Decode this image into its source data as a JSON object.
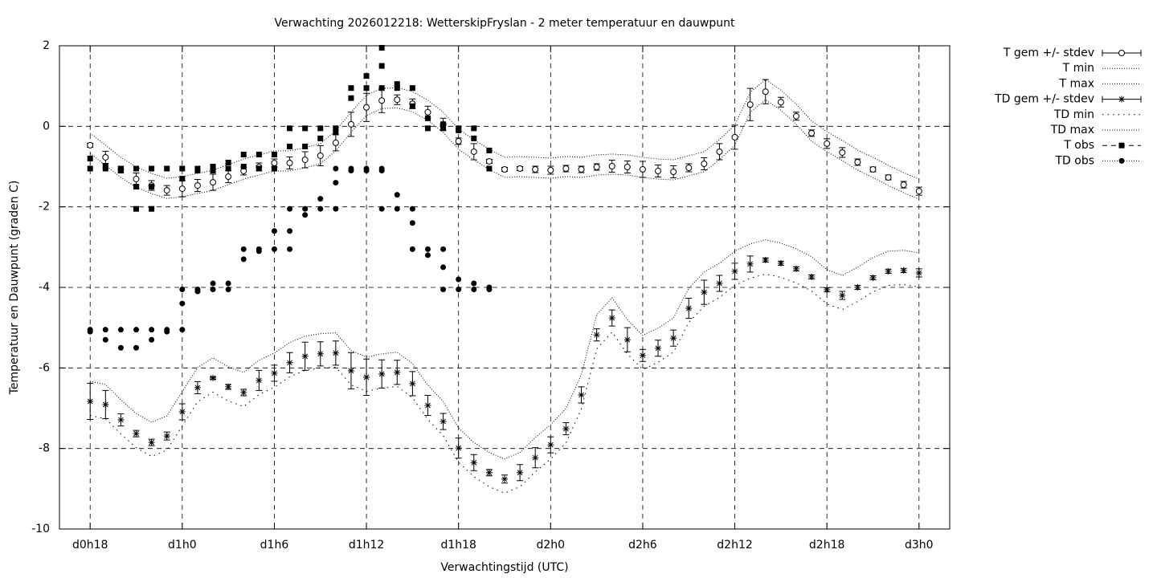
{
  "chart_data": {
    "type": "errorbar",
    "title": "Verwachting 2026012218: WetterskipFryslan - 2 meter temperatuur en dauwpunt",
    "xlabel": "Verwachtingstijd (UTC)",
    "ylabel": "Temperatuur en Dauwpunt (graden C)",
    "xlim": [
      16,
      74
    ],
    "ylim": [
      -10,
      2
    ],
    "xticks": [
      {
        "value": 18,
        "label": "d0h18"
      },
      {
        "value": 24,
        "label": "d1h0"
      },
      {
        "value": 30,
        "label": "d1h6"
      },
      {
        "value": 36,
        "label": "d1h12"
      },
      {
        "value": 42,
        "label": "d1h18"
      },
      {
        "value": 48,
        "label": "d2h0"
      },
      {
        "value": 54,
        "label": "d2h6"
      },
      {
        "value": 60,
        "label": "d2h12"
      },
      {
        "value": 66,
        "label": "d2h18"
      },
      {
        "value": 72,
        "label": "d3h0"
      }
    ],
    "yticks": [
      -10,
      -8,
      -6,
      -4,
      -2,
      0,
      2
    ],
    "grid": true,
    "legend": "outside-right",
    "x": [
      18,
      19,
      20,
      21,
      22,
      23,
      24,
      25,
      26,
      27,
      28,
      29,
      30,
      31,
      32,
      33,
      34,
      35,
      36,
      37,
      38,
      39,
      40,
      41,
      42,
      43,
      44,
      45,
      46,
      47,
      48,
      49,
      50,
      51,
      52,
      53,
      54,
      55,
      56,
      57,
      58,
      59,
      60,
      61,
      62,
      63,
      64,
      65,
      66,
      67,
      68,
      69,
      70,
      71,
      72
    ],
    "series": [
      {
        "name": "T gem +/- stdev",
        "color": "#000000",
        "style": "errorbars",
        "marker": "circle",
        "values": [
          -0.47,
          -0.77,
          -1.07,
          -1.31,
          -1.47,
          -1.59,
          -1.55,
          -1.47,
          -1.39,
          -1.25,
          -1.11,
          -1.01,
          -0.91,
          -0.91,
          -0.83,
          -0.73,
          -0.41,
          0.05,
          0.47,
          0.64,
          0.66,
          0.56,
          0.35,
          0.05,
          -0.37,
          -0.63,
          -0.87,
          -1.07,
          -1.05,
          -1.07,
          -1.09,
          -1.05,
          -1.07,
          -1.01,
          -0.99,
          -1.01,
          -1.07,
          -1.11,
          -1.13,
          -1.03,
          -0.93,
          -0.63,
          -0.27,
          0.54,
          0.86,
          0.6,
          0.25,
          -0.17,
          -0.43,
          -0.65,
          -0.89,
          -1.07,
          -1.27,
          -1.45,
          -1.61
        ],
        "errors": [
          0.05,
          0.15,
          0.08,
          0.15,
          0.12,
          0.12,
          0.2,
          0.15,
          0.2,
          0.15,
          0.1,
          0.1,
          0.1,
          0.15,
          0.2,
          0.25,
          0.2,
          0.3,
          0.35,
          0.3,
          0.12,
          0.12,
          0.15,
          0.15,
          0.08,
          0.2,
          0.05,
          0.05,
          0.05,
          0.08,
          0.1,
          0.08,
          0.08,
          0.08,
          0.15,
          0.15,
          0.2,
          0.15,
          0.15,
          0.1,
          0.15,
          0.2,
          0.3,
          0.4,
          0.3,
          0.12,
          0.1,
          0.08,
          0.12,
          0.12,
          0.08,
          0.06,
          0.06,
          0.08,
          0.1
        ]
      },
      {
        "name": "T min",
        "color": "#000000",
        "style": "line",
        "dash": "1 2",
        "values": [
          -0.67,
          -0.97,
          -1.27,
          -1.51,
          -1.67,
          -1.79,
          -1.75,
          -1.67,
          -1.59,
          -1.45,
          -1.31,
          -1.21,
          -1.11,
          -1.11,
          -1.03,
          -0.93,
          -0.61,
          -0.15,
          0.27,
          0.44,
          0.46,
          0.36,
          0.15,
          -0.15,
          -0.57,
          -0.83,
          -1.07,
          -1.27,
          -1.25,
          -1.27,
          -1.29,
          -1.25,
          -1.27,
          -1.21,
          -1.19,
          -1.21,
          -1.27,
          -1.31,
          -1.33,
          -1.23,
          -1.13,
          -0.83,
          -0.47,
          0.34,
          0.66,
          0.4,
          0.05,
          -0.37,
          -0.63,
          -0.85,
          -1.09,
          -1.27,
          -1.47,
          -1.65,
          -1.81
        ]
      },
      {
        "name": "T max",
        "color": "#000000",
        "style": "line",
        "dash": "1 2",
        "values": [
          -0.17,
          -0.47,
          -0.77,
          -1.01,
          -1.17,
          -1.29,
          -1.25,
          -1.17,
          -1.09,
          -0.95,
          -0.81,
          -0.71,
          -0.61,
          -0.61,
          -0.53,
          -0.43,
          -0.11,
          0.35,
          0.77,
          0.94,
          0.96,
          0.86,
          0.65,
          0.35,
          -0.07,
          -0.33,
          -0.57,
          -0.77,
          -0.75,
          -0.77,
          -0.79,
          -0.75,
          -0.77,
          -0.71,
          -0.69,
          -0.71,
          -0.77,
          -0.81,
          -0.83,
          -0.73,
          -0.63,
          -0.33,
          0.03,
          0.84,
          1.16,
          0.9,
          0.55,
          0.13,
          -0.13,
          -0.35,
          -0.59,
          -0.77,
          -0.97,
          -1.15,
          -1.31
        ]
      },
      {
        "name": "TD gem +/- stdev",
        "color": "#000000",
        "style": "errorbars",
        "marker": "star",
        "values": [
          -6.83,
          -6.91,
          -7.29,
          -7.63,
          -7.85,
          -7.69,
          -7.09,
          -6.49,
          -6.25,
          -6.47,
          -6.61,
          -6.31,
          -6.13,
          -5.87,
          -5.71,
          -5.65,
          -5.63,
          -6.07,
          -6.23,
          -6.15,
          -6.11,
          -6.39,
          -6.93,
          -7.33,
          -7.99,
          -8.35,
          -8.6,
          -8.76,
          -8.6,
          -8.23,
          -7.91,
          -7.51,
          -6.67,
          -5.18,
          -4.76,
          -5.3,
          -5.69,
          -5.51,
          -5.26,
          -4.52,
          -4.12,
          -3.9,
          -3.6,
          -3.42,
          -3.32,
          -3.4,
          -3.54,
          -3.74,
          -4.06,
          -4.2,
          -4.0,
          -3.76,
          -3.6,
          -3.58,
          -3.64
        ],
        "errors": [
          0.45,
          0.35,
          0.15,
          0.08,
          0.08,
          0.1,
          0.2,
          0.15,
          0.03,
          0.06,
          0.08,
          0.25,
          0.2,
          0.25,
          0.35,
          0.3,
          0.3,
          0.45,
          0.45,
          0.35,
          0.3,
          0.3,
          0.25,
          0.2,
          0.25,
          0.2,
          0.08,
          0.1,
          0.2,
          0.25,
          0.2,
          0.15,
          0.2,
          0.15,
          0.2,
          0.3,
          0.15,
          0.2,
          0.2,
          0.25,
          0.3,
          0.2,
          0.2,
          0.2,
          0.05,
          0.05,
          0.05,
          0.05,
          0.05,
          0.1,
          0.05,
          0.05,
          0.05,
          0.05,
          0.1
        ]
      },
      {
        "name": "TD min",
        "color": "#000000",
        "style": "line",
        "dash": "1.5 5",
        "values": [
          -7.18,
          -7.26,
          -7.64,
          -7.98,
          -8.2,
          -8.04,
          -7.44,
          -6.84,
          -6.6,
          -6.82,
          -6.96,
          -6.66,
          -6.48,
          -6.22,
          -6.06,
          -6.0,
          -5.98,
          -6.42,
          -6.58,
          -6.5,
          -6.46,
          -6.74,
          -7.28,
          -7.68,
          -8.34,
          -8.7,
          -8.95,
          -9.11,
          -8.95,
          -8.58,
          -8.26,
          -7.86,
          -7.02,
          -5.53,
          -5.11,
          -5.65,
          -6.04,
          -5.86,
          -5.61,
          -4.87,
          -4.47,
          -4.25,
          -3.95,
          -3.77,
          -3.67,
          -3.75,
          -3.89,
          -4.09,
          -4.41,
          -4.55,
          -4.35,
          -4.11,
          -3.95,
          -3.93,
          -3.99
        ]
      },
      {
        "name": "TD max",
        "color": "#000000",
        "style": "line",
        "dash": "1 2",
        "values": [
          -6.33,
          -6.41,
          -6.79,
          -7.13,
          -7.35,
          -7.19,
          -6.59,
          -5.99,
          -5.75,
          -5.97,
          -6.11,
          -5.81,
          -5.63,
          -5.37,
          -5.21,
          -5.15,
          -5.13,
          -5.57,
          -5.73,
          -5.65,
          -5.61,
          -5.89,
          -6.43,
          -6.83,
          -7.49,
          -7.85,
          -8.1,
          -8.26,
          -8.1,
          -7.73,
          -7.41,
          -7.01,
          -6.17,
          -4.68,
          -4.26,
          -4.8,
          -5.19,
          -5.01,
          -4.76,
          -4.02,
          -3.62,
          -3.4,
          -3.1,
          -2.92,
          -2.82,
          -2.9,
          -3.04,
          -3.24,
          -3.56,
          -3.7,
          -3.5,
          -3.26,
          -3.1,
          -3.08,
          -3.14
        ]
      },
      {
        "name": "T obs",
        "color": "#000000",
        "style": "points",
        "marker": "square",
        "dash": "6 5",
        "x": [
          18,
          18,
          19,
          19,
          20,
          20,
          21,
          21,
          21,
          22,
          22,
          22,
          23,
          24,
          24,
          25,
          25,
          26,
          26,
          27,
          27,
          28,
          28,
          29,
          29,
          30,
          30,
          31,
          31,
          32,
          32,
          33,
          33,
          34,
          34,
          35,
          35,
          36,
          36,
          37,
          37,
          37,
          38,
          38,
          39,
          39,
          40,
          40,
          41,
          41,
          42,
          42,
          43,
          43,
          44,
          44
        ],
        "values": [
          -0.8,
          -1.05,
          -1.0,
          -1.05,
          -1.1,
          -1.05,
          -1.05,
          -1.5,
          -2.05,
          -1.05,
          -1.5,
          -2.05,
          -1.05,
          -1.05,
          -1.3,
          -1.05,
          -1.1,
          -1.0,
          -1.1,
          -0.9,
          -1.05,
          -0.7,
          -1.0,
          -0.7,
          -1.05,
          -0.7,
          -1.05,
          -0.05,
          -0.5,
          -0.05,
          -0.5,
          -0.05,
          -0.3,
          -0.05,
          -0.15,
          0.95,
          0.7,
          1.25,
          0.95,
          1.95,
          1.5,
          0.95,
          1.05,
          0.95,
          0.95,
          0.5,
          0.2,
          -0.05,
          0.05,
          -0.05,
          -0.05,
          -0.1,
          -0.05,
          -0.3,
          -0.6,
          -1.05
        ]
      },
      {
        "name": "TD obs",
        "color": "#000000",
        "style": "points",
        "marker": "dot",
        "dash": "1 2",
        "x": [
          18,
          18,
          19,
          19,
          20,
          20,
          21,
          21,
          22,
          22,
          23,
          23,
          24,
          24,
          24,
          25,
          25,
          26,
          26,
          27,
          27,
          28,
          28,
          29,
          29,
          30,
          30,
          31,
          31,
          31,
          32,
          32,
          33,
          33,
          34,
          34,
          34,
          35,
          35,
          36,
          36,
          37,
          37,
          37,
          38,
          38,
          39,
          39,
          39,
          40,
          40,
          41,
          41,
          41,
          42,
          42,
          43,
          43,
          44,
          44
        ],
        "values": [
          -5.05,
          -5.1,
          -5.05,
          -5.3,
          -5.05,
          -5.5,
          -5.05,
          -5.5,
          -5.05,
          -5.3,
          -5.05,
          -5.1,
          -4.05,
          -4.4,
          -5.05,
          -4.05,
          -4.1,
          -3.9,
          -4.05,
          -3.9,
          -4.05,
          -3.05,
          -3.3,
          -3.05,
          -3.1,
          -2.6,
          -3.05,
          -2.05,
          -2.6,
          -3.05,
          -2.05,
          -2.2,
          -1.8,
          -2.05,
          -1.05,
          -1.4,
          -2.05,
          -1.05,
          -1.1,
          -1.05,
          -1.1,
          -1.05,
          -1.1,
          -2.05,
          -1.7,
          -2.05,
          -2.05,
          -2.4,
          -3.05,
          -3.05,
          -3.2,
          -3.05,
          -3.5,
          -4.05,
          -3.8,
          -4.05,
          -3.9,
          -4.05,
          -4.0,
          -4.05
        ]
      }
    ]
  }
}
